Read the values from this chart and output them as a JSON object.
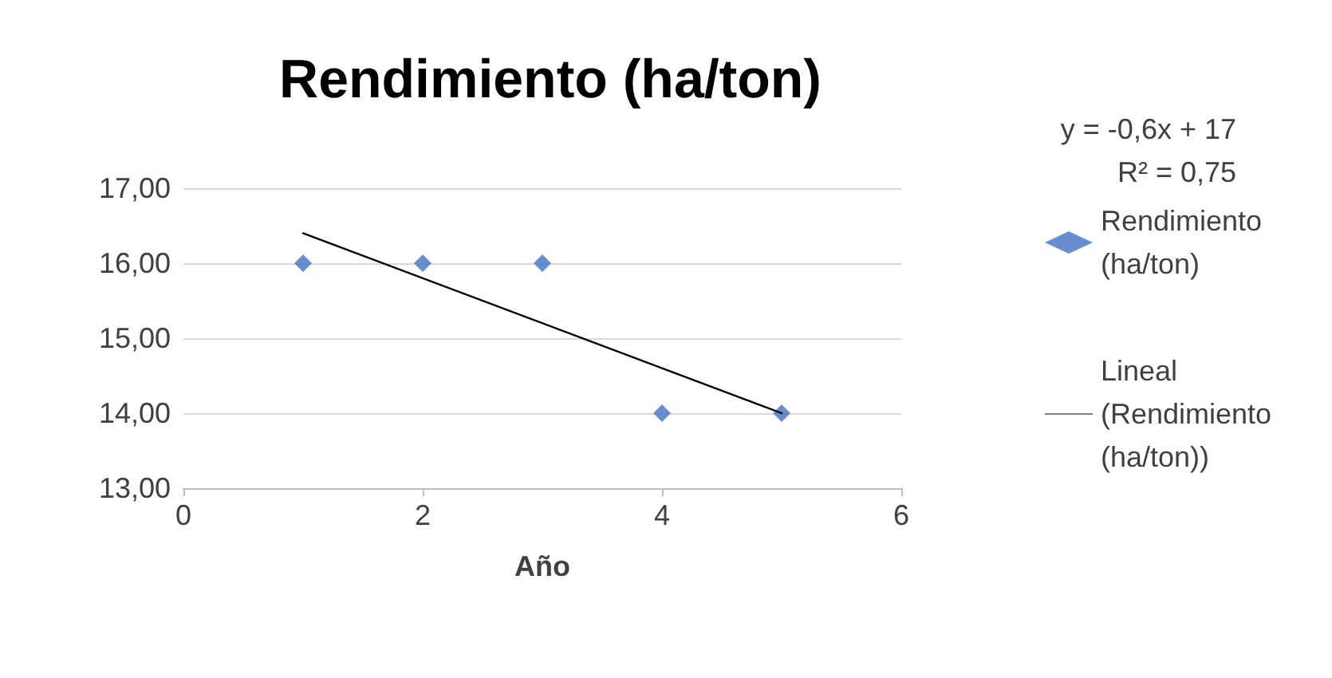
{
  "chart_data": {
    "type": "scatter",
    "title": "Rendimiento (ha/ton)",
    "xlabel": "Año",
    "annotations": [
      "y = -0,6x + 17",
      "R² = 0,75"
    ],
    "series": [
      {
        "name": "Rendimiento (ha/ton)",
        "color": "#4472c4",
        "marker": "diamond",
        "x": [
          1,
          2,
          3,
          4,
          5
        ],
        "values": [
          16,
          16,
          16,
          14,
          14
        ]
      },
      {
        "name": "Lineal (Rendimiento (ha/ton))",
        "type": "line",
        "color": "#000000",
        "marker": "none",
        "line_style": "solid",
        "x": [
          1,
          5
        ],
        "values": [
          16.4,
          14.0
        ]
      }
    ],
    "xlim": [
      0,
      6
    ],
    "xticks": [
      0,
      2,
      4,
      6
    ],
    "ylim": [
      13,
      17
    ],
    "yticks": [
      {
        "value": 13,
        "label": "13,00"
      },
      {
        "value": 14,
        "label": "14,00"
      },
      {
        "value": 15,
        "label": "15,00"
      },
      {
        "value": 16,
        "label": "16,00"
      },
      {
        "value": 17,
        "label": "17,00"
      }
    ],
    "grid": "y",
    "legend": "right"
  }
}
